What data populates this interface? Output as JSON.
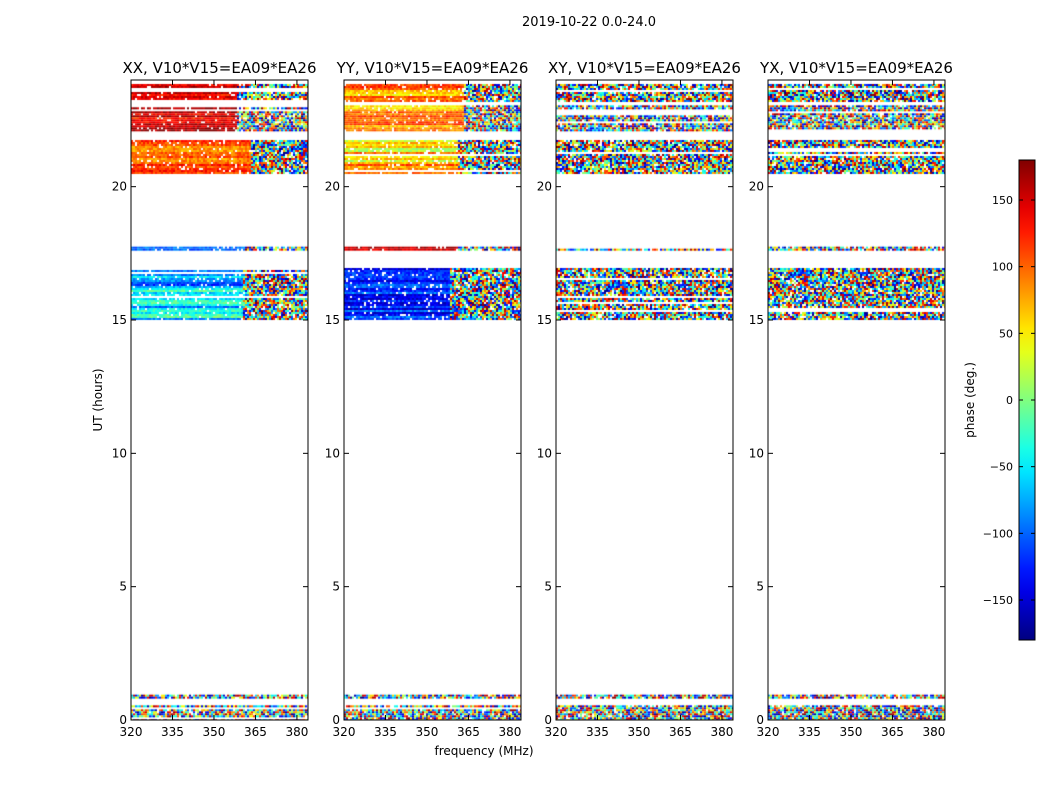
{
  "figure": {
    "suptitle": "2019-10-22 0.0-24.0",
    "colormap": "jet",
    "background": "#ffffff"
  },
  "chart_data": {
    "type": "heatmap",
    "title": "2019-10-22 0.0-24.0",
    "xlabel": "frequency (MHz)",
    "ylabel": "UT (hours)",
    "xlim": [
      320,
      384
    ],
    "ylim": [
      0,
      24
    ],
    "x_ticks": [
      "320",
      "335",
      "350",
      "365",
      "380"
    ],
    "x_tick_values": [
      320,
      335,
      350,
      365,
      380
    ],
    "y_ticks": [
      "0",
      "5",
      "10",
      "15",
      "20"
    ],
    "y_tick_values": [
      0,
      5,
      10,
      15,
      20
    ],
    "colorbar": {
      "label": "phase (deg.)",
      "range": [
        -180,
        180
      ],
      "ticks": [
        "150",
        "100",
        "50",
        "0",
        "−50",
        "−100",
        "−150"
      ],
      "tick_values": [
        150,
        100,
        50,
        0,
        -50,
        -100,
        -150
      ],
      "colormap": "jet"
    },
    "data_intervals_hours": [
      [
        0.0,
        0.55
      ],
      [
        0.85,
        0.95
      ],
      [
        15.05,
        16.95
      ],
      [
        17.6,
        17.75
      ],
      [
        20.5,
        21.75
      ],
      [
        22.1,
        23.05
      ],
      [
        23.2,
        23.85
      ]
    ],
    "panels": [
      {
        "title": "XX, V10*V15=EA09*EA26",
        "pattern": "coherent",
        "segments": [
          {
            "y_range": [
              20.5,
              21.75
            ],
            "coherent_phase_deg": [
              70,
              130
            ],
            "noisy_above_mhz": 363
          },
          {
            "y_range": [
              15.05,
              16.95
            ],
            "coherent_phase_deg": [
              -120,
              -10
            ],
            "noisy_above_mhz": 360
          },
          {
            "y_range": [
              17.6,
              17.75
            ],
            "coherent_phase_deg": [
              -110,
              -90
            ],
            "noisy_above_mhz": 361
          },
          {
            "y_range": [
              22.1,
              23.85
            ],
            "coherent_phase_deg": [
              120,
              170
            ],
            "noisy_above_mhz": 358
          }
        ]
      },
      {
        "title": "YY, V10*V15=EA09*EA26",
        "pattern": "coherent",
        "segments": [
          {
            "y_range": [
              20.5,
              21.75
            ],
            "coherent_phase_deg": [
              10,
              110
            ],
            "noisy_above_mhz": 361
          },
          {
            "y_range": [
              15.05,
              16.95
            ],
            "coherent_phase_deg": [
              -150,
              -90
            ],
            "noisy_above_mhz": 358
          },
          {
            "y_range": [
              17.6,
              17.75
            ],
            "coherent_phase_deg": [
              120,
              160
            ],
            "noisy_above_mhz": 361
          },
          {
            "y_range": [
              22.1,
              23.85
            ],
            "coherent_phase_deg": [
              40,
              120
            ],
            "noisy_above_mhz": 363
          }
        ]
      },
      {
        "title": "XY, V10*V15=EA09*EA26",
        "pattern": "noise",
        "segments": []
      },
      {
        "title": "YX, V10*V15=EA09*EA26",
        "pattern": "noise",
        "segments": []
      }
    ]
  }
}
